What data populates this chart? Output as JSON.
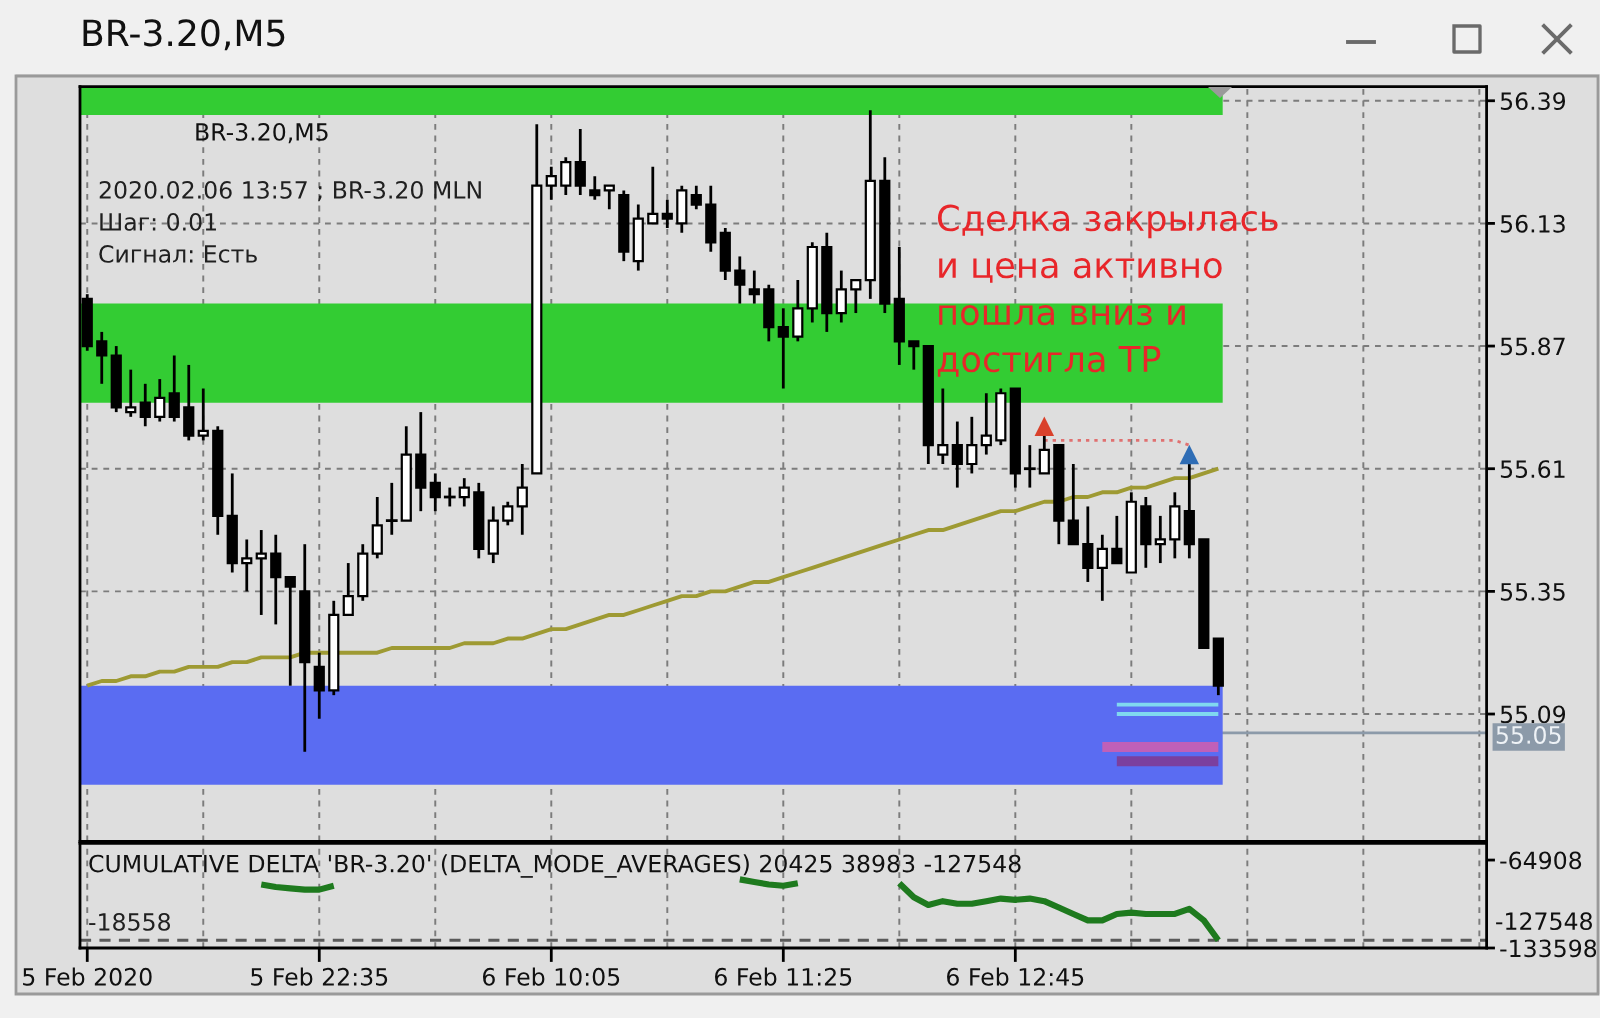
{
  "chart_data": [
    {
      "type": "candlestick",
      "title": "BR-3.20,M5",
      "subtitle": "BR-3.20,M5",
      "annotations": [
        "2020.02.06 13:57 ; BR-3.20 MLN",
        "Шаг: 0.01",
        "Сигнал: Есть",
        "Сделка закрылась\nи цена активно\nпошла вниз и\nдостигла TP"
      ],
      "categories": [
        null,
        null,
        null,
        null,
        null,
        null,
        null,
        null,
        null,
        null,
        null,
        null,
        null,
        null,
        null,
        null,
        null,
        null,
        null,
        null,
        null,
        null,
        null,
        null,
        null,
        null,
        null,
        null,
        null,
        null,
        null,
        null,
        null,
        null,
        null,
        null,
        null,
        null,
        null,
        null,
        null,
        null,
        null,
        null,
        null,
        null,
        null,
        null,
        null,
        null,
        null,
        null,
        null,
        null,
        null,
        null,
        null,
        null,
        null,
        null,
        null,
        null,
        null,
        null,
        null,
        null,
        null,
        null,
        null,
        null,
        null,
        null,
        null,
        null,
        null,
        null,
        null,
        null,
        null,
        null,
        null,
        null,
        null,
        null,
        null,
        null,
        null,
        null,
        null,
        null,
        null,
        null,
        null,
        null,
        null,
        null,
        null
      ],
      "ohlc": [
        [
          55.97,
          55.98,
          55.86,
          55.87
        ],
        [
          55.88,
          55.9,
          55.79,
          55.85
        ],
        [
          55.85,
          55.87,
          55.73,
          55.74
        ],
        [
          55.73,
          55.82,
          55.72,
          55.74
        ],
        [
          55.75,
          55.79,
          55.7,
          55.72
        ],
        [
          55.72,
          55.8,
          55.71,
          55.76
        ],
        [
          55.77,
          55.85,
          55.71,
          55.72
        ],
        [
          55.74,
          55.83,
          55.67,
          55.68
        ],
        [
          55.68,
          55.78,
          55.67,
          55.69
        ],
        [
          55.69,
          55.7,
          55.47,
          55.51
        ],
        [
          55.51,
          55.6,
          55.39,
          55.41
        ],
        [
          55.41,
          55.46,
          55.35,
          55.42
        ],
        [
          55.42,
          55.48,
          55.3,
          55.43
        ],
        [
          55.43,
          55.47,
          55.28,
          55.38
        ],
        [
          55.38,
          55.38,
          55.15,
          55.36
        ],
        [
          55.35,
          55.45,
          55.01,
          55.2
        ],
        [
          55.19,
          55.22,
          55.08,
          55.14
        ],
        [
          55.14,
          55.33,
          55.13,
          55.3
        ],
        [
          55.3,
          55.41,
          55.3,
          55.34
        ],
        [
          55.34,
          55.45,
          55.33,
          55.43
        ],
        [
          55.43,
          55.55,
          55.42,
          55.49
        ],
        [
          55.5,
          55.58,
          55.47,
          55.5
        ],
        [
          55.5,
          55.7,
          55.5,
          55.64
        ],
        [
          55.64,
          55.73,
          55.52,
          55.57
        ],
        [
          55.58,
          55.6,
          55.52,
          55.55
        ],
        [
          55.55,
          55.57,
          55.53,
          55.55
        ],
        [
          55.55,
          55.59,
          55.53,
          55.57
        ],
        [
          55.56,
          55.58,
          55.42,
          55.44
        ],
        [
          55.43,
          55.53,
          55.41,
          55.5
        ],
        [
          55.5,
          55.54,
          55.49,
          55.53
        ],
        [
          55.53,
          55.62,
          55.47,
          55.57
        ],
        [
          55.6,
          56.34,
          55.6,
          56.21
        ],
        [
          56.21,
          56.25,
          56.18,
          56.23
        ],
        [
          56.21,
          56.27,
          56.19,
          56.26
        ],
        [
          56.26,
          56.33,
          56.19,
          56.21
        ],
        [
          56.2,
          56.23,
          56.18,
          56.19
        ],
        [
          56.2,
          56.21,
          56.16,
          56.21
        ],
        [
          56.19,
          56.2,
          56.05,
          56.07
        ],
        [
          56.05,
          56.17,
          56.03,
          56.14
        ],
        [
          56.13,
          56.25,
          56.13,
          56.15
        ],
        [
          56.15,
          56.18,
          56.12,
          56.14
        ],
        [
          56.13,
          56.21,
          56.11,
          56.2
        ],
        [
          56.19,
          56.21,
          56.16,
          56.17
        ],
        [
          56.17,
          56.21,
          56.07,
          56.09
        ],
        [
          56.11,
          56.12,
          56.01,
          56.03
        ],
        [
          56.03,
          56.06,
          55.96,
          56.0
        ],
        [
          55.99,
          56.03,
          55.96,
          55.98
        ],
        [
          55.99,
          56.0,
          55.88,
          55.91
        ],
        [
          55.91,
          55.95,
          55.78,
          55.89
        ],
        [
          55.89,
          56.01,
          55.88,
          55.95
        ],
        [
          55.95,
          56.09,
          55.92,
          56.08
        ],
        [
          56.08,
          56.11,
          55.9,
          55.94
        ],
        [
          55.94,
          56.03,
          55.92,
          55.99
        ],
        [
          55.99,
          56.01,
          55.94,
          56.01
        ],
        [
          56.01,
          56.37,
          55.97,
          56.22
        ],
        [
          56.22,
          56.27,
          55.94,
          55.96
        ],
        [
          55.97,
          56.08,
          55.83,
          55.88
        ],
        [
          55.88,
          55.88,
          55.82,
          55.87
        ],
        [
          55.87,
          55.87,
          55.62,
          55.66
        ],
        [
          55.64,
          55.78,
          55.62,
          55.66
        ],
        [
          55.66,
          55.71,
          55.57,
          55.62
        ],
        [
          55.62,
          55.72,
          55.6,
          55.66
        ],
        [
          55.66,
          55.77,
          55.64,
          55.68
        ],
        [
          55.67,
          55.78,
          55.66,
          55.77
        ],
        [
          55.78,
          55.78,
          55.57,
          55.6
        ],
        [
          55.61,
          55.66,
          55.57,
          55.61
        ],
        [
          55.6,
          55.68,
          55.6,
          55.65
        ],
        [
          55.66,
          55.66,
          55.45,
          55.5
        ],
        [
          55.5,
          55.62,
          55.45,
          55.45
        ],
        [
          55.45,
          55.53,
          55.37,
          55.4
        ],
        [
          55.4,
          55.47,
          55.33,
          55.44
        ],
        [
          55.44,
          55.51,
          55.41,
          55.41
        ],
        [
          55.39,
          55.56,
          55.39,
          55.54
        ],
        [
          55.53,
          55.55,
          55.4,
          55.45
        ],
        [
          55.45,
          55.51,
          55.41,
          55.46
        ],
        [
          55.46,
          55.56,
          55.42,
          55.53
        ],
        [
          55.52,
          55.62,
          55.42,
          55.45
        ],
        [
          55.46,
          55.46,
          55.23,
          55.23
        ],
        [
          55.25,
          55.25,
          55.13,
          55.15
        ],
        null,
        null,
        null,
        null,
        null,
        null,
        null,
        null,
        null,
        null,
        null,
        null,
        null,
        null,
        null,
        null,
        null,
        null
      ],
      "bands": [
        {
          "axis": "y",
          "from": 56.36,
          "to": 56.42,
          "color": "#33cc33"
        },
        {
          "axis": "y",
          "from": 55.75,
          "to": 55.96,
          "color": "#33cc33"
        },
        {
          "axis": "y",
          "from": 54.94,
          "to": 55.15,
          "color": "#5a6cf2"
        }
      ],
      "series": [
        {
          "type": "line",
          "color": "#c060b8",
          "values": [
            null,
            null,
            null,
            null,
            null,
            null,
            null,
            null,
            null,
            null,
            null,
            null,
            null,
            null,
            null,
            null,
            null,
            null,
            null,
            null,
            null,
            null,
            null,
            null,
            null,
            null,
            null,
            null,
            null,
            null,
            null,
            null,
            null,
            null,
            null,
            null,
            null,
            null,
            null,
            null,
            null,
            null,
            null,
            null,
            null,
            null,
            null,
            null,
            null,
            null,
            null,
            null,
            null,
            null,
            null,
            null,
            null,
            null,
            null,
            null,
            null,
            null,
            null,
            null,
            null,
            null,
            null,
            null,
            null,
            null,
            55.02,
            55.02,
            55.02,
            55.02,
            55.02,
            55.02,
            55.02,
            55.02,
            55.02,
            null,
            null,
            null,
            null,
            null,
            null,
            null,
            null,
            null,
            null,
            null,
            null,
            null,
            null,
            null,
            null,
            null,
            null
          ]
        },
        {
          "type": "line",
          "color": "#7b3f9e",
          "values": [
            null,
            null,
            null,
            null,
            null,
            null,
            null,
            null,
            null,
            null,
            null,
            null,
            null,
            null,
            null,
            null,
            null,
            null,
            null,
            null,
            null,
            null,
            null,
            null,
            null,
            null,
            null,
            null,
            null,
            null,
            null,
            null,
            null,
            null,
            null,
            null,
            null,
            null,
            null,
            null,
            null,
            null,
            null,
            null,
            null,
            null,
            null,
            null,
            null,
            null,
            null,
            null,
            null,
            null,
            null,
            null,
            null,
            null,
            null,
            null,
            null,
            null,
            null,
            null,
            null,
            null,
            null,
            null,
            null,
            null,
            null,
            54.99,
            54.99,
            54.99,
            54.99,
            54.99,
            54.99,
            54.99,
            54.99,
            null,
            null,
            null,
            null,
            null,
            null,
            null,
            null,
            null,
            null,
            null,
            null,
            null,
            null,
            null,
            null,
            null,
            null
          ]
        },
        {
          "type": "line",
          "color": "#80d8f0",
          "values": [
            null,
            null,
            null,
            null,
            null,
            null,
            null,
            null,
            null,
            null,
            null,
            null,
            null,
            null,
            null,
            null,
            null,
            null,
            null,
            null,
            null,
            null,
            null,
            null,
            null,
            null,
            null,
            null,
            null,
            null,
            null,
            null,
            null,
            null,
            null,
            null,
            null,
            null,
            null,
            null,
            null,
            null,
            null,
            null,
            null,
            null,
            null,
            null,
            null,
            null,
            null,
            null,
            null,
            null,
            null,
            null,
            null,
            null,
            null,
            null,
            null,
            null,
            null,
            null,
            null,
            null,
            null,
            null,
            null,
            null,
            null,
            55.11,
            55.11,
            55.11,
            55.11,
            55.11,
            55.11,
            55.11,
            55.11,
            null,
            null,
            null,
            null,
            null,
            null,
            null,
            null,
            null,
            null,
            null,
            null,
            null,
            null,
            null,
            null,
            null,
            null
          ]
        },
        {
          "type": "line",
          "color": "#80d8f0",
          "values": [
            null,
            null,
            null,
            null,
            null,
            null,
            null,
            null,
            null,
            null,
            null,
            null,
            null,
            null,
            null,
            null,
            null,
            null,
            null,
            null,
            null,
            null,
            null,
            null,
            null,
            null,
            null,
            null,
            null,
            null,
            null,
            null,
            null,
            null,
            null,
            null,
            null,
            null,
            null,
            null,
            null,
            null,
            null,
            null,
            null,
            null,
            null,
            null,
            null,
            null,
            null,
            null,
            null,
            null,
            null,
            null,
            null,
            null,
            null,
            null,
            null,
            null,
            null,
            null,
            null,
            null,
            null,
            null,
            null,
            null,
            null,
            55.09,
            55.09,
            55.09,
            55.09,
            55.09,
            55.09,
            55.09,
            55.09,
            null,
            null,
            null,
            null,
            null,
            null,
            null,
            null,
            null,
            null,
            null,
            null,
            null,
            null,
            null,
            null,
            null,
            null
          ]
        },
        {
          "type": "line",
          "color": "#9e9a33",
          "values": [
            55.15,
            55.16,
            55.16,
            55.17,
            55.17,
            55.18,
            55.18,
            55.19,
            55.19,
            55.19,
            55.2,
            55.2,
            55.21,
            55.21,
            55.21,
            55.22,
            55.22,
            55.22,
            55.22,
            55.22,
            55.22,
            55.23,
            55.23,
            55.23,
            55.23,
            55.23,
            55.24,
            55.24,
            55.24,
            55.25,
            55.25,
            55.26,
            55.27,
            55.27,
            55.28,
            55.29,
            55.3,
            55.3,
            55.31,
            55.32,
            55.33,
            55.34,
            55.34,
            55.35,
            55.35,
            55.36,
            55.37,
            55.37,
            55.38,
            55.39,
            55.4,
            55.41,
            55.42,
            55.43,
            55.44,
            55.45,
            55.46,
            55.47,
            55.48,
            55.48,
            55.49,
            55.5,
            55.51,
            55.52,
            55.52,
            55.53,
            55.54,
            55.54,
            55.55,
            55.55,
            55.56,
            55.56,
            55.57,
            55.57,
            55.58,
            55.59,
            55.59,
            55.6,
            55.61,
            null,
            null,
            null,
            null,
            null,
            null,
            null,
            null,
            null,
            null,
            null,
            null,
            null,
            null,
            null,
            null,
            null,
            null
          ]
        },
        {
          "type": "line",
          "color": "#e07070",
          "line_style": "dotted",
          "values": [
            null,
            null,
            null,
            null,
            null,
            null,
            null,
            null,
            null,
            null,
            null,
            null,
            null,
            null,
            null,
            null,
            null,
            null,
            null,
            null,
            null,
            null,
            null,
            null,
            null,
            null,
            null,
            null,
            null,
            null,
            null,
            null,
            null,
            null,
            null,
            null,
            null,
            null,
            null,
            null,
            null,
            null,
            null,
            null,
            null,
            null,
            null,
            null,
            null,
            null,
            null,
            null,
            null,
            null,
            null,
            null,
            null,
            null,
            null,
            null,
            null,
            null,
            null,
            null,
            null,
            null,
            55.67,
            55.67,
            55.67,
            55.67,
            55.67,
            55.67,
            55.67,
            55.67,
            55.67,
            55.67,
            55.66,
            null,
            null,
            null,
            null,
            null,
            null,
            null,
            null,
            null,
            null,
            null,
            null,
            null,
            null,
            null,
            null,
            null,
            null,
            null,
            null
          ]
        },
        {
          "type": "scatter",
          "color": "#d9412b",
          "marker": "triangle",
          "values": [
            null,
            null,
            null,
            null,
            null,
            null,
            null,
            null,
            null,
            null,
            null,
            null,
            null,
            null,
            null,
            null,
            null,
            null,
            null,
            null,
            null,
            null,
            null,
            null,
            null,
            null,
            null,
            null,
            null,
            null,
            null,
            null,
            null,
            null,
            null,
            null,
            null,
            null,
            null,
            null,
            null,
            null,
            null,
            null,
            null,
            null,
            null,
            null,
            null,
            null,
            null,
            null,
            null,
            null,
            null,
            null,
            null,
            null,
            null,
            null,
            null,
            null,
            null,
            null,
            null,
            null,
            55.7,
            null,
            null,
            null,
            null,
            null,
            null,
            null,
            null,
            null,
            null,
            null,
            null,
            null,
            null,
            null,
            null,
            null,
            null,
            null,
            null,
            null,
            null,
            null,
            null,
            null,
            null,
            null,
            null,
            null,
            null
          ]
        },
        {
          "type": "scatter",
          "color": "#2f6db5",
          "marker": "triangle",
          "values": [
            null,
            null,
            null,
            null,
            null,
            null,
            null,
            null,
            null,
            null,
            null,
            null,
            null,
            null,
            null,
            null,
            null,
            null,
            null,
            null,
            null,
            null,
            null,
            null,
            null,
            null,
            null,
            null,
            null,
            null,
            null,
            null,
            null,
            null,
            null,
            null,
            null,
            null,
            null,
            null,
            null,
            null,
            null,
            null,
            null,
            null,
            null,
            null,
            null,
            null,
            null,
            null,
            null,
            null,
            null,
            null,
            null,
            null,
            null,
            null,
            null,
            null,
            null,
            null,
            null,
            null,
            null,
            null,
            null,
            null,
            null,
            null,
            null,
            null,
            null,
            null,
            55.64,
            null,
            null,
            null,
            null,
            null,
            null,
            null,
            null,
            null,
            null,
            null,
            null,
            null,
            null,
            null,
            null,
            null,
            null,
            null,
            null
          ]
        }
      ],
      "ref_lines": [
        {
          "axis": "y",
          "value": 55.05,
          "label": "55.05",
          "color": "#8c9aa9"
        }
      ],
      "ylim": [
        54.82,
        56.42
      ],
      "yticks": [
        56.39,
        56.13,
        55.87,
        55.61,
        55.35,
        55.09
      ],
      "tick_labels": "y",
      "grid": true
    },
    {
      "type": "line",
      "title": "CUMULATIVE DELTA 'BR-3.20' (DELTA_MODE_AVERAGES) 20425 38983 -127548",
      "annotations": [
        "-18558"
      ],
      "categories": [
        "5 Feb 2020",
        null,
        null,
        null,
        null,
        null,
        null,
        null,
        null,
        null,
        null,
        null,
        null,
        null,
        null,
        null,
        "5 Feb 22:35",
        null,
        null,
        null,
        null,
        null,
        null,
        null,
        null,
        null,
        null,
        null,
        null,
        null,
        null,
        null,
        "6 Feb 10:05",
        null,
        null,
        null,
        null,
        null,
        null,
        null,
        null,
        null,
        null,
        null,
        null,
        null,
        null,
        null,
        "6 Feb 11:25",
        null,
        null,
        null,
        null,
        null,
        null,
        null,
        null,
        null,
        null,
        null,
        null,
        null,
        null,
        null,
        "6 Feb 12:45",
        null,
        null,
        null,
        null,
        null,
        null,
        null,
        null,
        null,
        null,
        null,
        null,
        null,
        null,
        null,
        null,
        null,
        null,
        null,
        null,
        null,
        null,
        null,
        null,
        null,
        null,
        null,
        null,
        null,
        null,
        null,
        null
      ],
      "series": [
        {
          "color": "#1e7a1e",
          "values": [
            null,
            null,
            null,
            null,
            null,
            null,
            null,
            null,
            null,
            null,
            null,
            null,
            -84000,
            -86000,
            -87000,
            -88000,
            -88000,
            -85000,
            null,
            null,
            null,
            null,
            null,
            null,
            null,
            null,
            null,
            null,
            null,
            null,
            null,
            null,
            null,
            null,
            null,
            null,
            null,
            null,
            null,
            null,
            null,
            null,
            null,
            null,
            null,
            -80000,
            -82000,
            -84000,
            -85000,
            -83000,
            null,
            null,
            null,
            null,
            null,
            null,
            -83000,
            -94000,
            -100000,
            -97000,
            -99000,
            -99000,
            -97000,
            -95000,
            -96000,
            -95000,
            -97000,
            -102000,
            -107000,
            -112000,
            -112000,
            -107000,
            -106000,
            -107000,
            -107000,
            -107000,
            -103000,
            -112000,
            -127548,
            null,
            null,
            null,
            null,
            null,
            null,
            null,
            null,
            null,
            null,
            null,
            null,
            null,
            null,
            null,
            null,
            null,
            null
          ]
        }
      ],
      "ref_lines": [
        {
          "axis": "y",
          "value": -127548,
          "label": "-127548",
          "line_style": "dashed"
        }
      ],
      "ylim": [
        -133598,
        -51900
      ],
      "yticks": [
        -64908,
        -133598
      ],
      "grid": "x"
    }
  ]
}
